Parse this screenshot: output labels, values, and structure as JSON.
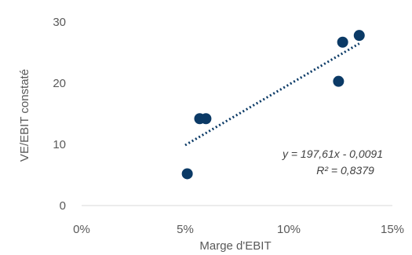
{
  "chart_data": {
    "type": "scatter",
    "title": "",
    "xlabel": "Marge d'EBIT",
    "ylabel": "VE/EBIT constaté",
    "xlim": [
      0,
      0.15
    ],
    "ylim": [
      0,
      30
    ],
    "xticks": [
      0,
      0.05,
      0.1,
      0.15
    ],
    "xtick_labels": [
      "0%",
      "5%",
      "10%",
      "15%"
    ],
    "yticks": [
      0,
      10,
      20,
      30
    ],
    "ytick_labels": [
      "0",
      "10",
      "20",
      "30"
    ],
    "grid": false,
    "legend": "none",
    "series": [
      {
        "color": "#0b3a66",
        "points": [
          {
            "x": 0.051,
            "y": 5.2
          },
          {
            "x": 0.057,
            "y": 14.2
          },
          {
            "x": 0.06,
            "y": 14.2
          },
          {
            "x": 0.124,
            "y": 20.3
          },
          {
            "x": 0.126,
            "y": 26.7
          },
          {
            "x": 0.134,
            "y": 27.8
          }
        ]
      }
    ],
    "trendline": {
      "style": "dotted",
      "color": "#0b3a66",
      "x_range": [
        0.05,
        0.134
      ],
      "slope": 197.61,
      "intercept": -0.0091,
      "equation_label": "y = 197,61x - 0,0091",
      "r2_label": "R² = 0,8379"
    }
  }
}
